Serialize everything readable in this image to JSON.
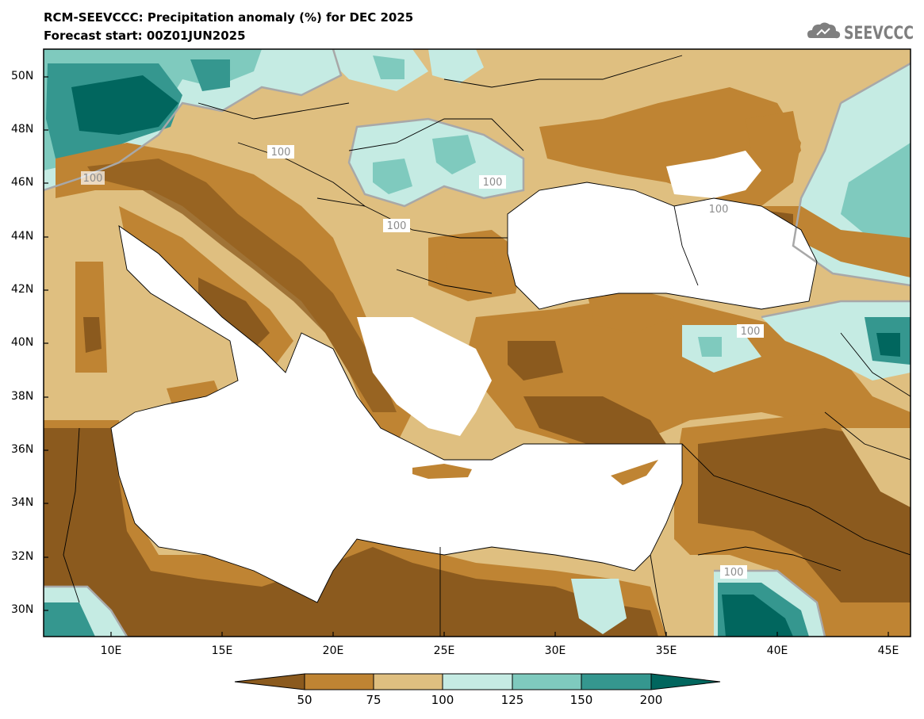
{
  "header": {
    "title": "RCM-SEEVCCC: Precipitation anomaly (%) for DEC 2025",
    "subtitle": "Forecast start: 00Z01JUN2025",
    "logo_text": "SEEVCCC"
  },
  "map": {
    "region": "Eastern Mediterranean & Black Sea",
    "lon_range": [
      7,
      46
    ],
    "lat_range": [
      29,
      51
    ],
    "lat_labels": [
      "50N",
      "48N",
      "46N",
      "44N",
      "42N",
      "40N",
      "38N",
      "36N",
      "34N",
      "32N",
      "30N"
    ],
    "lon_labels": [
      "10E",
      "15E",
      "20E",
      "25E",
      "30E",
      "35E",
      "40E",
      "45E"
    ],
    "contour_labels": [
      "100",
      "100",
      "100",
      "100",
      "100",
      "100",
      "100"
    ]
  },
  "colorbar": {
    "labels": [
      "50",
      "75",
      "100",
      "125",
      "150",
      "200"
    ],
    "colors": [
      "#8b5a1e",
      "#bf8433",
      "#dfbf80",
      "#c5ebe3",
      "#7fcabe",
      "#35978f",
      "#01665e"
    ]
  }
}
